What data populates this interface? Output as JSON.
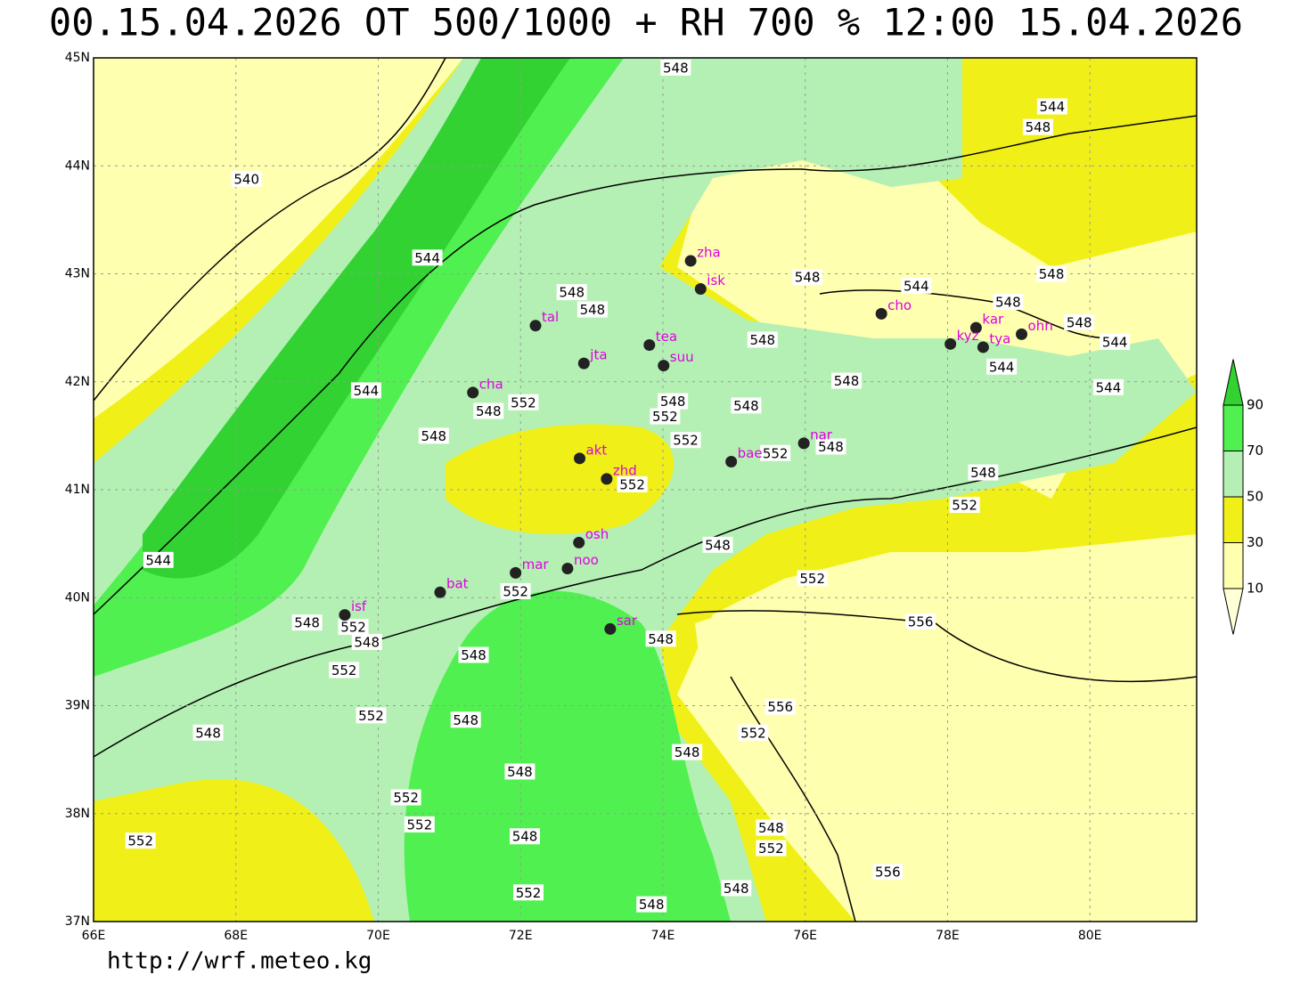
{
  "title": "00.15.04.2026 OT 500/1000 + RH 700 % 12:00 15.04.2026",
  "map": {
    "lon_range": [
      66,
      81.5
    ],
    "lat_range": [
      37,
      45
    ],
    "lon_ticks": [
      {
        "value": 66,
        "label": "66E"
      },
      {
        "value": 68,
        "label": "68E"
      },
      {
        "value": 70,
        "label": "70E"
      },
      {
        "value": 72,
        "label": "72E"
      },
      {
        "value": 74,
        "label": "74E"
      },
      {
        "value": 76,
        "label": "76E"
      },
      {
        "value": 78,
        "label": "78E"
      },
      {
        "value": 80,
        "label": "80E"
      }
    ],
    "lat_ticks": [
      {
        "value": 37,
        "label": "37N"
      },
      {
        "value": 38,
        "label": "38N"
      },
      {
        "value": 39,
        "label": "39N"
      },
      {
        "value": 40,
        "label": "40N"
      },
      {
        "value": 41,
        "label": "41N"
      },
      {
        "value": 42,
        "label": "42N"
      },
      {
        "value": 43,
        "label": "43N"
      },
      {
        "value": 44,
        "label": "44N"
      },
      {
        "value": 45,
        "label": "45N"
      }
    ],
    "stations": [
      {
        "name": "zha",
        "lon": 74.39,
        "lat": 43.12
      },
      {
        "name": "isk",
        "lon": 74.53,
        "lat": 42.86
      },
      {
        "name": "tal",
        "lon": 72.21,
        "lat": 42.52
      },
      {
        "name": "jta",
        "lon": 72.89,
        "lat": 42.17
      },
      {
        "name": "tea",
        "lon": 73.81,
        "lat": 42.34
      },
      {
        "name": "suu",
        "lon": 74.01,
        "lat": 42.15
      },
      {
        "name": "cha",
        "lon": 71.33,
        "lat": 41.9
      },
      {
        "name": "cho",
        "lon": 77.07,
        "lat": 42.63
      },
      {
        "name": "kar",
        "lon": 78.4,
        "lat": 42.5
      },
      {
        "name": "kyz",
        "lon": 78.04,
        "lat": 42.35
      },
      {
        "name": "tya",
        "lon": 78.5,
        "lat": 42.32
      },
      {
        "name": "ohn",
        "lon": 79.04,
        "lat": 42.44
      },
      {
        "name": "nar",
        "lon": 75.98,
        "lat": 41.43
      },
      {
        "name": "bae",
        "lon": 74.96,
        "lat": 41.26
      },
      {
        "name": "akt",
        "lon": 72.83,
        "lat": 41.29
      },
      {
        "name": "zhd",
        "lon": 73.21,
        "lat": 41.1
      },
      {
        "name": "osh",
        "lon": 72.82,
        "lat": 40.51
      },
      {
        "name": "mar",
        "lon": 71.93,
        "lat": 40.23
      },
      {
        "name": "noo",
        "lon": 72.66,
        "lat": 40.27
      },
      {
        "name": "bat",
        "lon": 70.87,
        "lat": 40.05
      },
      {
        "name": "isf",
        "lon": 69.53,
        "lat": 39.84
      },
      {
        "name": "sar",
        "lon": 73.26,
        "lat": 39.71
      }
    ],
    "contour_labels": [
      {
        "label": "548",
        "lon": 74.18,
        "lat": 44.91
      },
      {
        "label": "544",
        "lon": 79.47,
        "lat": 44.55
      },
      {
        "label": "548",
        "lon": 79.27,
        "lat": 44.36
      },
      {
        "label": "540",
        "lon": 68.15,
        "lat": 43.88
      },
      {
        "label": "544",
        "lon": 70.69,
        "lat": 43.15
      },
      {
        "label": "548",
        "lon": 76.03,
        "lat": 42.97
      },
      {
        "label": "544",
        "lon": 77.56,
        "lat": 42.89
      },
      {
        "label": "548",
        "lon": 79.46,
        "lat": 43.0
      },
      {
        "label": "548",
        "lon": 72.72,
        "lat": 42.83
      },
      {
        "label": "548",
        "lon": 73.01,
        "lat": 42.67
      },
      {
        "label": "548",
        "lon": 78.85,
        "lat": 42.74
      },
      {
        "label": "548",
        "lon": 79.85,
        "lat": 42.55
      },
      {
        "label": "544",
        "lon": 80.35,
        "lat": 42.37
      },
      {
        "label": "548",
        "lon": 75.4,
        "lat": 42.39
      },
      {
        "label": "544",
        "lon": 78.76,
        "lat": 42.14
      },
      {
        "label": "548",
        "lon": 76.58,
        "lat": 42.01
      },
      {
        "label": "544",
        "lon": 69.83,
        "lat": 41.92
      },
      {
        "label": "544",
        "lon": 80.26,
        "lat": 41.95
      },
      {
        "label": "548",
        "lon": 71.55,
        "lat": 41.73
      },
      {
        "label": "552",
        "lon": 72.04,
        "lat": 41.81
      },
      {
        "label": "548",
        "lon": 74.14,
        "lat": 41.82
      },
      {
        "label": "552",
        "lon": 74.03,
        "lat": 41.68
      },
      {
        "label": "548",
        "lon": 75.17,
        "lat": 41.78
      },
      {
        "label": "548",
        "lon": 70.78,
        "lat": 41.5
      },
      {
        "label": "552",
        "lon": 74.32,
        "lat": 41.46
      },
      {
        "label": "552",
        "lon": 75.58,
        "lat": 41.34
      },
      {
        "label": "548",
        "lon": 76.36,
        "lat": 41.4
      },
      {
        "label": "552",
        "lon": 73.57,
        "lat": 41.05
      },
      {
        "label": "548",
        "lon": 78.5,
        "lat": 41.16
      },
      {
        "label": "552",
        "lon": 78.24,
        "lat": 40.86
      },
      {
        "label": "548",
        "lon": 74.77,
        "lat": 40.49
      },
      {
        "label": "552",
        "lon": 76.1,
        "lat": 40.18
      },
      {
        "label": "544",
        "lon": 66.91,
        "lat": 40.35
      },
      {
        "label": "552",
        "lon": 71.93,
        "lat": 40.06
      },
      {
        "label": "556",
        "lon": 77.62,
        "lat": 39.78
      },
      {
        "label": "548",
        "lon": 69.0,
        "lat": 39.77
      },
      {
        "label": "552",
        "lon": 69.65,
        "lat": 39.73
      },
      {
        "label": "548",
        "lon": 69.84,
        "lat": 39.59
      },
      {
        "label": "548",
        "lon": 73.97,
        "lat": 39.62
      },
      {
        "label": "548",
        "lon": 71.34,
        "lat": 39.47
      },
      {
        "label": "552",
        "lon": 69.52,
        "lat": 39.33
      },
      {
        "label": "552",
        "lon": 69.9,
        "lat": 38.91
      },
      {
        "label": "548",
        "lon": 71.23,
        "lat": 38.87
      },
      {
        "label": "556",
        "lon": 75.65,
        "lat": 38.99
      },
      {
        "label": "548",
        "lon": 67.61,
        "lat": 38.75
      },
      {
        "label": "552",
        "lon": 75.27,
        "lat": 38.75
      },
      {
        "label": "548",
        "lon": 74.34,
        "lat": 38.57
      },
      {
        "label": "548",
        "lon": 71.99,
        "lat": 38.39
      },
      {
        "label": "552",
        "lon": 70.39,
        "lat": 38.15
      },
      {
        "label": "552",
        "lon": 70.58,
        "lat": 37.9
      },
      {
        "label": "548",
        "lon": 72.06,
        "lat": 37.79
      },
      {
        "label": "548",
        "lon": 75.52,
        "lat": 37.87
      },
      {
        "label": "552",
        "lon": 66.66,
        "lat": 37.75
      },
      {
        "label": "552",
        "lon": 75.52,
        "lat": 37.68
      },
      {
        "label": "556",
        "lon": 77.16,
        "lat": 37.46
      },
      {
        "label": "548",
        "lon": 75.03,
        "lat": 37.31
      },
      {
        "label": "552",
        "lon": 72.11,
        "lat": 37.27
      },
      {
        "label": "548",
        "lon": 73.84,
        "lat": 37.16
      }
    ]
  },
  "colorbar": {
    "levels": [
      10,
      30,
      50,
      70,
      90
    ],
    "colors": [
      "#ffffd8",
      "#ffffb0",
      "#f0f018",
      "#b4f0b4",
      "#50f050",
      "#32d232"
    ]
  },
  "footer": "http://wrf.meteo.kg"
}
